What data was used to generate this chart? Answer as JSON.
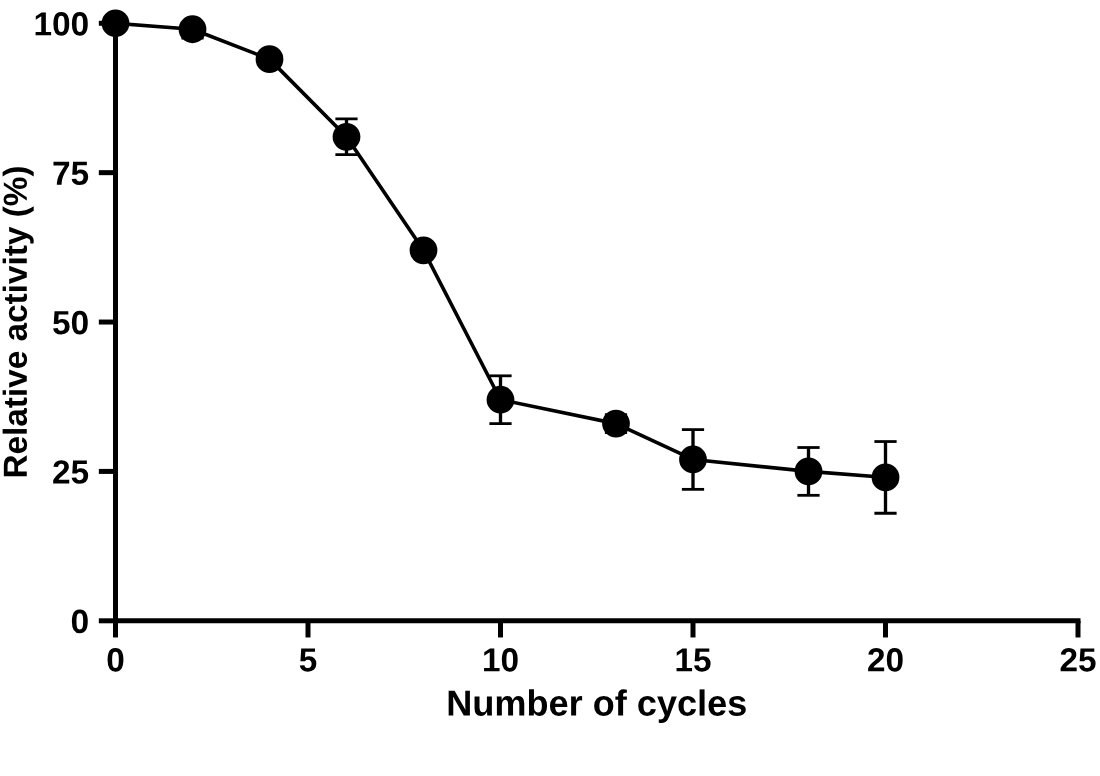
{
  "chart_data": {
    "type": "line",
    "xlabel": "Number of cycles",
    "ylabel": "Relative activity (%)",
    "x": [
      0,
      2,
      4,
      6,
      8,
      10,
      13,
      15,
      18,
      20
    ],
    "series": [
      {
        "color": "#000000",
        "values": [
          100,
          99,
          94,
          81,
          62,
          37,
          33,
          27,
          25,
          24
        ],
        "errors": [
          null,
          1.5,
          null,
          3,
          null,
          4,
          1.5,
          5,
          4,
          6
        ]
      }
    ],
    "xlim": [
      0,
      25
    ],
    "xticks": [
      0,
      5,
      10,
      15,
      20,
      25
    ],
    "ylim": [
      0,
      100
    ],
    "yticks": [
      0,
      25,
      50,
      75,
      100
    ],
    "grid": false,
    "marker": "circle",
    "line_style": "solid"
  }
}
